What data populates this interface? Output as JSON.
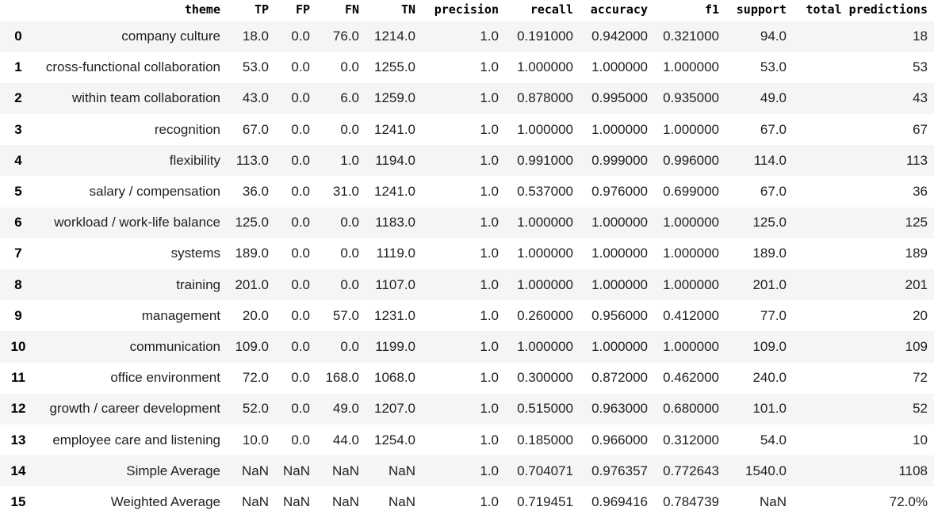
{
  "table": {
    "columns": [
      "",
      "theme",
      "TP",
      "FP",
      "FN",
      "TN",
      "precision",
      "recall",
      "accuracy",
      "f1",
      "support",
      "total predictions"
    ],
    "rows": [
      [
        "0",
        "company culture",
        "18.0",
        "0.0",
        "76.0",
        "1214.0",
        "1.0",
        "0.191000",
        "0.942000",
        "0.321000",
        "94.0",
        "18"
      ],
      [
        "1",
        "cross-functional collaboration",
        "53.0",
        "0.0",
        "0.0",
        "1255.0",
        "1.0",
        "1.000000",
        "1.000000",
        "1.000000",
        "53.0",
        "53"
      ],
      [
        "2",
        "within team collaboration",
        "43.0",
        "0.0",
        "6.0",
        "1259.0",
        "1.0",
        "0.878000",
        "0.995000",
        "0.935000",
        "49.0",
        "43"
      ],
      [
        "3",
        "recognition",
        "67.0",
        "0.0",
        "0.0",
        "1241.0",
        "1.0",
        "1.000000",
        "1.000000",
        "1.000000",
        "67.0",
        "67"
      ],
      [
        "4",
        "flexibility",
        "113.0",
        "0.0",
        "1.0",
        "1194.0",
        "1.0",
        "0.991000",
        "0.999000",
        "0.996000",
        "114.0",
        "113"
      ],
      [
        "5",
        "salary / compensation",
        "36.0",
        "0.0",
        "31.0",
        "1241.0",
        "1.0",
        "0.537000",
        "0.976000",
        "0.699000",
        "67.0",
        "36"
      ],
      [
        "6",
        "workload / work-life balance",
        "125.0",
        "0.0",
        "0.0",
        "1183.0",
        "1.0",
        "1.000000",
        "1.000000",
        "1.000000",
        "125.0",
        "125"
      ],
      [
        "7",
        "systems",
        "189.0",
        "0.0",
        "0.0",
        "1119.0",
        "1.0",
        "1.000000",
        "1.000000",
        "1.000000",
        "189.0",
        "189"
      ],
      [
        "8",
        "training",
        "201.0",
        "0.0",
        "0.0",
        "1107.0",
        "1.0",
        "1.000000",
        "1.000000",
        "1.000000",
        "201.0",
        "201"
      ],
      [
        "9",
        "management",
        "20.0",
        "0.0",
        "57.0",
        "1231.0",
        "1.0",
        "0.260000",
        "0.956000",
        "0.412000",
        "77.0",
        "20"
      ],
      [
        "10",
        "communication",
        "109.0",
        "0.0",
        "0.0",
        "1199.0",
        "1.0",
        "1.000000",
        "1.000000",
        "1.000000",
        "109.0",
        "109"
      ],
      [
        "11",
        "office environment",
        "72.0",
        "0.0",
        "168.0",
        "1068.0",
        "1.0",
        "0.300000",
        "0.872000",
        "0.462000",
        "240.0",
        "72"
      ],
      [
        "12",
        "growth / career development",
        "52.0",
        "0.0",
        "49.0",
        "1207.0",
        "1.0",
        "0.515000",
        "0.963000",
        "0.680000",
        "101.0",
        "52"
      ],
      [
        "13",
        "employee care and listening",
        "10.0",
        "0.0",
        "44.0",
        "1254.0",
        "1.0",
        "0.185000",
        "0.966000",
        "0.312000",
        "54.0",
        "10"
      ],
      [
        "14",
        "Simple Average",
        "NaN",
        "NaN",
        "NaN",
        "NaN",
        "1.0",
        "0.704071",
        "0.976357",
        "0.772643",
        "1540.0",
        "1108"
      ],
      [
        "15",
        "Weighted Average",
        "NaN",
        "NaN",
        "NaN",
        "NaN",
        "1.0",
        "0.719451",
        "0.969416",
        "0.784739",
        "NaN",
        "72.0%"
      ]
    ]
  }
}
